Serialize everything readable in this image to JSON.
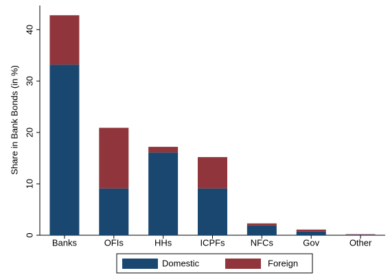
{
  "chart_data": {
    "type": "stacked_bar",
    "y_label": "Share in Bank Bonds (in %)",
    "categories": [
      "Banks",
      "OFIs",
      "HHs",
      "ICPFs",
      "NFCs",
      "Gov",
      "Other"
    ],
    "series": [
      {
        "name": "Domestic",
        "color": "#1a476f",
        "values": [
          33.2,
          9.1,
          16.1,
          9.1,
          1.9,
          0.7,
          0.1
        ]
      },
      {
        "name": "Foreign",
        "color": "#90353b",
        "values": [
          9.6,
          11.8,
          1.1,
          6.1,
          0.4,
          0.4,
          0.1
        ]
      }
    ],
    "ylim": [
      0,
      44.7
    ],
    "yticks": [
      0,
      10,
      20,
      30,
      40
    ],
    "legend": "bottom"
  }
}
